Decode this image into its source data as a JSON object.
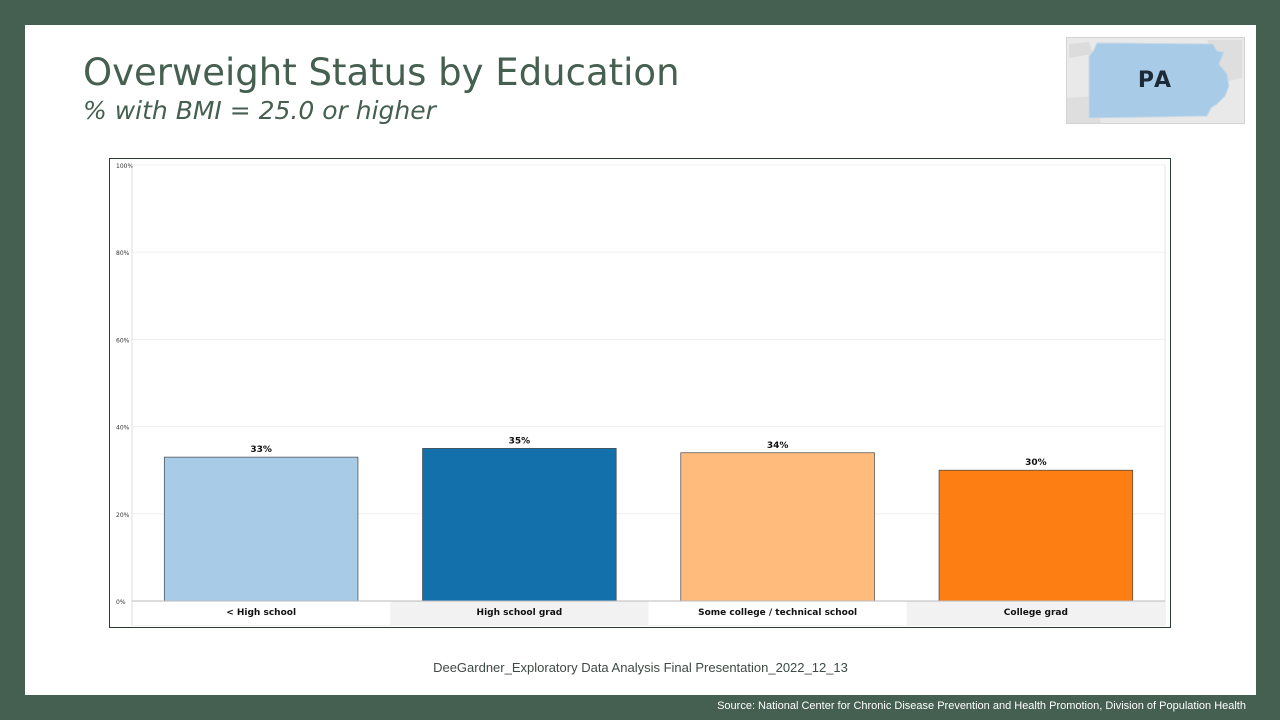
{
  "slide": {
    "title": "Overweight Status by Education",
    "subtitle": "% with BMI =  25.0 or higher",
    "footer": "DeeGardner_Exploratory Data Analysis Final Presentation_2022_12_13",
    "source": "Source: National Center for Chronic Disease Prevention and Health Promotion, Division of Population Health"
  },
  "logo": {
    "label": "PA",
    "map_color": "#a8cce8"
  },
  "chart_data": {
    "type": "bar",
    "categories": [
      "< High school",
      "High school grad",
      "Some college / technical school",
      "College grad"
    ],
    "values": [
      33,
      35,
      34,
      30
    ],
    "data_labels": [
      "33%",
      "35%",
      "34%",
      "30%"
    ],
    "colors": [
      "#a8cce8",
      "#1470ab",
      "#ffbb7c",
      "#fd7e12"
    ],
    "ylim": [
      0,
      100
    ],
    "yticks": [
      0,
      20,
      40,
      60,
      80,
      100
    ],
    "ytick_labels": [
      "0%",
      "20%",
      "40%",
      "60%",
      "80%",
      "100%"
    ],
    "grid": true,
    "xlabel": "",
    "ylabel": ""
  }
}
